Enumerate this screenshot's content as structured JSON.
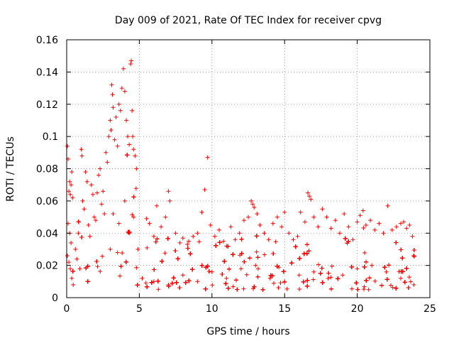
{
  "chart_data": {
    "type": "scatter",
    "title": "Day 009 of 2021, Rate Of TEC Index for receiver cpvg",
    "xlabel": "GPS time / hours",
    "ylabel": "ROTI / TECUs",
    "xlim": [
      0,
      25
    ],
    "ylim": [
      0,
      0.16
    ],
    "x_ticks": [
      0,
      5,
      10,
      15,
      20,
      25
    ],
    "x_tick_labels": [
      "0",
      "5",
      "10",
      "15",
      "20",
      "25"
    ],
    "y_ticks": [
      0,
      0.02,
      0.04,
      0.06,
      0.08,
      0.1,
      0.12,
      0.14,
      0.16
    ],
    "y_tick_labels": [
      "0",
      "0.02",
      "0.04",
      "0.06",
      "0.08",
      "0.1",
      "0.12",
      "0.14",
      "0.16"
    ],
    "grid": true,
    "marker": "+",
    "color": "#ff0000",
    "series": [
      {
        "name": "ROTI",
        "points": [
          [
            0.05,
            0.094
          ],
          [
            0.1,
            0.086
          ],
          [
            0.15,
            0.066
          ],
          [
            0.2,
            0.072
          ],
          [
            0.25,
            0.064
          ],
          [
            0.3,
            0.07
          ],
          [
            0.35,
            0.078
          ],
          [
            0.4,
            0.062
          ],
          [
            0.1,
            0.046
          ],
          [
            0.2,
            0.04
          ],
          [
            0.3,
            0.034
          ],
          [
            0.05,
            0.026
          ],
          [
            0.15,
            0.022
          ],
          [
            0.25,
            0.018
          ],
          [
            0.35,
            0.012
          ],
          [
            0.45,
            0.008
          ],
          [
            0.6,
            0.03
          ],
          [
            0.7,
            0.024
          ],
          [
            0.8,
            0.04
          ],
          [
            0.9,
            0.018
          ],
          [
            1.0,
            0.092
          ],
          [
            1.05,
            0.088
          ],
          [
            1.1,
            0.06
          ],
          [
            1.2,
            0.055
          ],
          [
            1.3,
            0.078
          ],
          [
            1.4,
            0.072
          ],
          [
            1.5,
            0.045
          ],
          [
            1.6,
            0.038
          ],
          [
            1.7,
            0.07
          ],
          [
            1.8,
            0.064
          ],
          [
            1.9,
            0.05
          ],
          [
            2.0,
            0.048
          ],
          [
            2.1,
            0.065
          ],
          [
            2.2,
            0.076
          ],
          [
            2.3,
            0.08
          ],
          [
            2.4,
            0.058
          ],
          [
            2.5,
            0.066
          ],
          [
            2.6,
            0.052
          ],
          [
            2.7,
            0.09
          ],
          [
            2.8,
            0.084
          ],
          [
            2.9,
            0.1
          ],
          [
            3.0,
            0.11
          ],
          [
            3.05,
            0.104
          ],
          [
            3.1,
            0.132
          ],
          [
            3.15,
            0.126
          ],
          [
            3.2,
            0.118
          ],
          [
            3.3,
            0.098
          ],
          [
            3.4,
            0.112
          ],
          [
            3.5,
            0.094
          ],
          [
            3.6,
            0.12
          ],
          [
            3.7,
            0.116
          ],
          [
            3.8,
            0.13
          ],
          [
            3.9,
            0.142
          ],
          [
            4.0,
            0.128
          ],
          [
            4.1,
            0.11
          ],
          [
            4.2,
            0.1
          ],
          [
            4.3,
            0.095
          ],
          [
            4.4,
            0.145
          ],
          [
            4.45,
            0.147
          ],
          [
            4.5,
            0.116
          ],
          [
            4.55,
            0.1
          ],
          [
            4.6,
            0.092
          ],
          [
            4.7,
            0.088
          ],
          [
            4.8,
            0.08
          ],
          [
            3.2,
            0.052
          ],
          [
            3.6,
            0.046
          ],
          [
            4.0,
            0.06
          ],
          [
            4.3,
            0.04
          ],
          [
            4.6,
            0.05
          ],
          [
            4.9,
            0.03
          ],
          [
            3.0,
            0.03
          ],
          [
            3.5,
            0.028
          ],
          [
            5.5,
            0.049
          ],
          [
            5.7,
            0.046
          ],
          [
            6.0,
            0.038
          ],
          [
            6.2,
            0.057
          ],
          [
            6.5,
            0.044
          ],
          [
            6.8,
            0.05
          ],
          [
            7.0,
            0.066
          ],
          [
            7.1,
            0.06
          ],
          [
            7.5,
            0.04
          ],
          [
            7.8,
            0.034
          ],
          [
            8.0,
            0.037
          ],
          [
            8.4,
            0.035
          ],
          [
            8.7,
            0.038
          ],
          [
            9.0,
            0.04
          ],
          [
            9.3,
            0.053
          ],
          [
            9.5,
            0.067
          ],
          [
            9.7,
            0.087
          ],
          [
            9.9,
            0.045
          ],
          [
            10.2,
            0.038
          ],
          [
            10.5,
            0.042
          ],
          [
            10.8,
            0.035
          ],
          [
            11.0,
            0.032
          ],
          [
            11.3,
            0.044
          ],
          [
            11.6,
            0.036
          ],
          [
            11.9,
            0.04
          ],
          [
            12.2,
            0.048
          ],
          [
            12.5,
            0.05
          ],
          [
            12.7,
            0.06
          ],
          [
            12.8,
            0.058
          ],
          [
            12.9,
            0.056
          ],
          [
            13.1,
            0.052
          ],
          [
            13.3,
            0.045
          ],
          [
            13.6,
            0.04
          ],
          [
            13.9,
            0.036
          ],
          [
            14.2,
            0.046
          ],
          [
            14.5,
            0.05
          ],
          [
            14.8,
            0.044
          ],
          [
            15.0,
            0.053
          ],
          [
            15.3,
            0.04
          ],
          [
            15.6,
            0.036
          ],
          [
            15.9,
            0.038
          ],
          [
            16.1,
            0.053
          ],
          [
            16.4,
            0.047
          ],
          [
            16.6,
            0.065
          ],
          [
            16.7,
            0.063
          ],
          [
            16.8,
            0.061
          ],
          [
            17.0,
            0.05
          ],
          [
            17.3,
            0.044
          ],
          [
            17.6,
            0.055
          ],
          [
            17.9,
            0.05
          ],
          [
            18.2,
            0.043
          ],
          [
            18.5,
            0.048
          ],
          [
            18.8,
            0.04
          ],
          [
            19.1,
            0.052
          ],
          [
            19.4,
            0.044
          ],
          [
            19.7,
            0.036
          ],
          [
            20.0,
            0.047
          ],
          [
            20.2,
            0.051
          ],
          [
            20.4,
            0.054
          ],
          [
            20.6,
            0.045
          ],
          [
            20.9,
            0.048
          ],
          [
            21.2,
            0.042
          ],
          [
            21.5,
            0.046
          ],
          [
            21.8,
            0.04
          ],
          [
            22.1,
            0.057
          ],
          [
            22.4,
            0.042
          ],
          [
            22.7,
            0.044
          ],
          [
            23.0,
            0.046
          ],
          [
            23.2,
            0.047
          ],
          [
            23.4,
            0.043
          ],
          [
            23.6,
            0.045
          ],
          [
            23.8,
            0.038
          ],
          [
            5.2,
            0.012
          ],
          [
            6.0,
            0.01
          ],
          [
            7.0,
            0.008
          ],
          [
            8.0,
            0.014
          ],
          [
            9.0,
            0.01
          ],
          [
            10.0,
            0.016
          ],
          [
            11.0,
            0.012
          ],
          [
            12.0,
            0.018
          ],
          [
            13.0,
            0.02
          ],
          [
            14.0,
            0.012
          ],
          [
            15.0,
            0.01
          ],
          [
            16.0,
            0.014
          ],
          [
            17.0,
            0.016
          ],
          [
            18.0,
            0.012
          ],
          [
            19.0,
            0.014
          ],
          [
            20.0,
            0.018
          ],
          [
            21.0,
            0.02
          ],
          [
            22.0,
            0.016
          ],
          [
            23.0,
            0.012
          ],
          [
            23.9,
            0.008
          ]
        ]
      }
    ],
    "notes": "Dense cloud of + markers; point list is an estimated representative sample of the depicted ROTI values."
  }
}
